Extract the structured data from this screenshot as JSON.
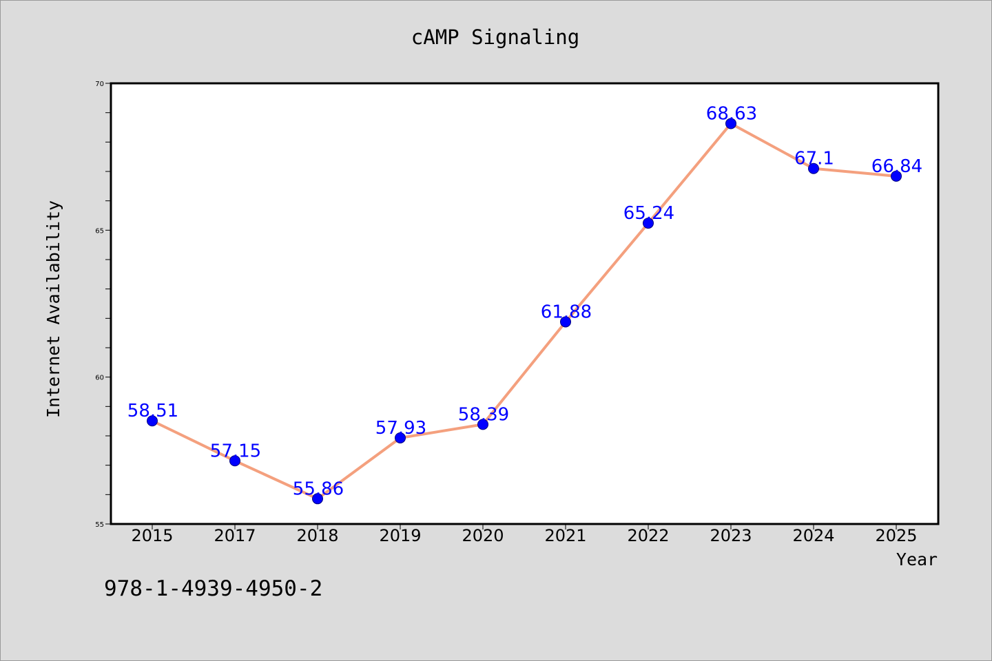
{
  "chart_data": {
    "type": "line",
    "title": "cAMP Signaling",
    "xlabel": "Year",
    "ylabel": "Internet Availability",
    "categories": [
      "2015",
      "2017",
      "2018",
      "2019",
      "2020",
      "2021",
      "2022",
      "2023",
      "2024",
      "2025"
    ],
    "series": [
      {
        "values": [
          58.51,
          57.15,
          55.86,
          57.93,
          58.39,
          61.88,
          65.24,
          68.63,
          67.1,
          66.84
        ],
        "data_labels": [
          "58.51",
          "57.15",
          "55.86",
          "57.93",
          "58.39",
          "61.88",
          "65.24",
          "68.63",
          "67.1",
          "66.84"
        ]
      }
    ],
    "ylim": [
      55,
      70
    ],
    "yticks": [
      "55",
      "60",
      "65",
      "70"
    ],
    "y_minor_step": 1,
    "grid": false,
    "legend": "none"
  },
  "footer": {
    "code": "978-1-4939-4950-2"
  },
  "colors": {
    "background": "#dcdcdc",
    "plot_background": "#ffffff",
    "line": "#f4a07e",
    "marker": "#0000ff",
    "data_label": "#0000ff",
    "frame": "#000000"
  }
}
